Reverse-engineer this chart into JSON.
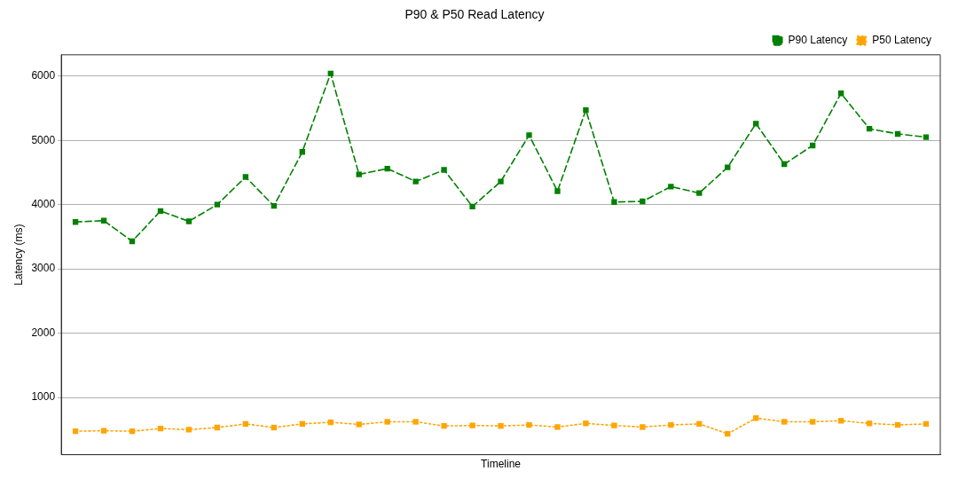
{
  "chart_data": {
    "type": "line",
    "title": "P90 & P50 Read Latency",
    "xlabel": "Timeline",
    "ylabel": "Latency (ms)",
    "categories": [
      null,
      null,
      null,
      null,
      null,
      null,
      null,
      null,
      null,
      null,
      null,
      null,
      null,
      null,
      null,
      null,
      null,
      null,
      null,
      null,
      null,
      null,
      null,
      null,
      null,
      null,
      null,
      null,
      null,
      null,
      null
    ],
    "series": [
      {
        "name": "P90 Latency",
        "color": "#008000",
        "line_style": "dashed",
        "values": [
          3730,
          3750,
          3430,
          3900,
          3740,
          4000,
          4430,
          3980,
          4820,
          6040,
          4470,
          4560,
          4360,
          4540,
          3970,
          4360,
          5080,
          4210,
          5470,
          4040,
          4050,
          4280,
          4180,
          4580,
          5260,
          4630,
          4920,
          5730,
          5180,
          5100,
          5050
        ]
      },
      {
        "name": "P50 Latency",
        "color": "#ffa500",
        "line_style": "dotted",
        "values": [
          475,
          483,
          475,
          516,
          500,
          532,
          589,
          532,
          589,
          614,
          581,
          622,
          622,
          557,
          565,
          557,
          573,
          540,
          597,
          565,
          540,
          573,
          589,
          435,
          679,
          622,
          622,
          638,
          597,
          573,
          589
        ]
      }
    ],
    "ylim": [
      110,
      6330
    ],
    "yticks": [
      1000,
      2000,
      3000,
      4000,
      5000,
      6000
    ],
    "grid": "y",
    "legend": "top right",
    "marker": "square",
    "tick_labels": "y"
  }
}
